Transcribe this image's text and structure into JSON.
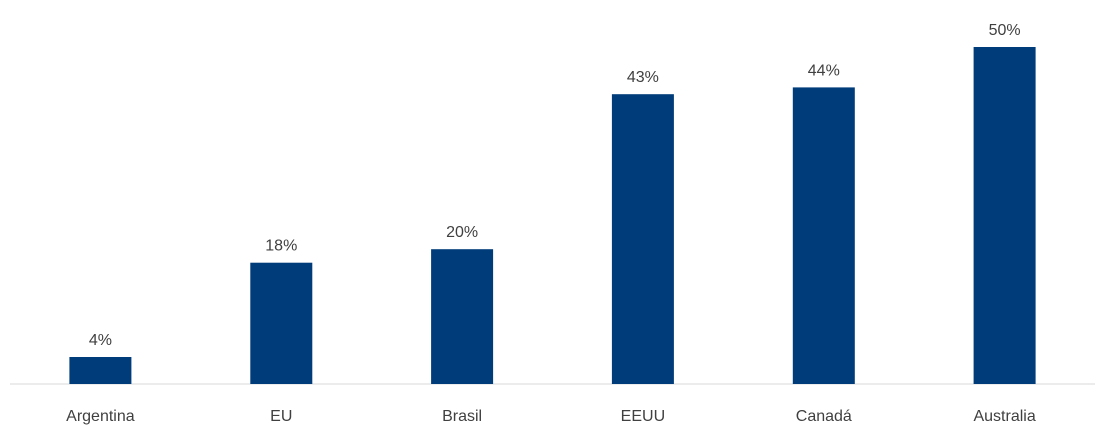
{
  "chart_data": {
    "type": "bar",
    "title": "",
    "xlabel": "",
    "ylabel": "",
    "categories": [
      "Argentina",
      "EU",
      "Brasil",
      "EEUU",
      "Canadá",
      "Australia"
    ],
    "values": [
      4,
      18,
      20,
      43,
      44,
      50
    ],
    "value_labels": [
      "4%",
      "18%",
      "20%",
      "43%",
      "44%",
      "50%"
    ],
    "unit": "%",
    "ylim": [
      0,
      50
    ],
    "grid": false,
    "legend": "none",
    "bar_color": "#003b7a",
    "axis_color": "#d9d9d9",
    "label_color": "#404040"
  }
}
